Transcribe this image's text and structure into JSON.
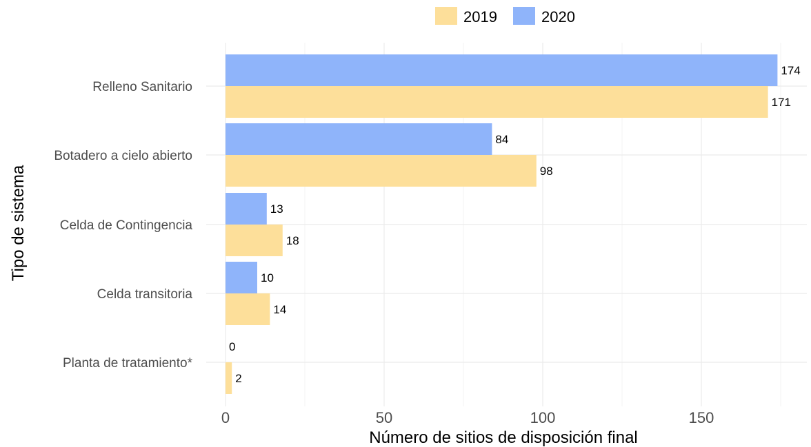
{
  "chart_data": {
    "type": "bar",
    "orientation": "horizontal",
    "categories": [
      "Relleno Sanitario",
      "Botadero a cielo abierto",
      "Celda de Contingencia",
      "Celda transitoria",
      "Planta de tratamiento*"
    ],
    "series": [
      {
        "name": "2019",
        "values": [
          171,
          98,
          18,
          14,
          2
        ],
        "color": "#FDDF9A"
      },
      {
        "name": "2020",
        "values": [
          174,
          84,
          13,
          10,
          0
        ],
        "color": "#8FB4FA"
      }
    ],
    "xlabel": "Número de sitios de disposición final",
    "ylabel": "Tipo de sistema",
    "xlim": [
      0,
      180
    ],
    "xticks": [
      0,
      50,
      100,
      150
    ],
    "grid": true,
    "legend_position": "top-right"
  }
}
